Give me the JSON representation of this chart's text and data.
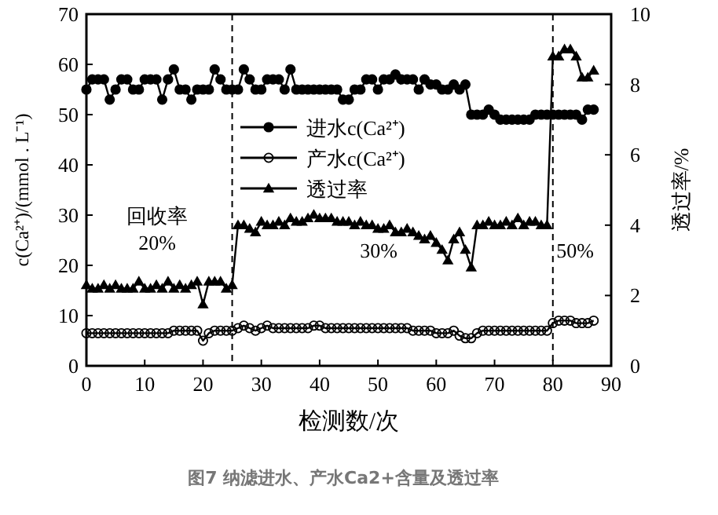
{
  "chart_data": {
    "type": "line",
    "title": "图7 纳滤进水、产水Ca2+含量及透过率",
    "xlabel": "检测数/次",
    "ylabel": "c(Ca²⁺)/(mmol . L⁻¹)",
    "y2label": "透过率/%",
    "x": [
      0,
      1,
      2,
      3,
      4,
      5,
      6,
      7,
      8,
      9,
      10,
      11,
      12,
      13,
      14,
      15,
      16,
      17,
      18,
      19,
      20,
      21,
      22,
      23,
      24,
      25,
      26,
      27,
      28,
      29,
      30,
      31,
      32,
      33,
      34,
      35,
      36,
      37,
      38,
      39,
      40,
      41,
      42,
      43,
      44,
      45,
      46,
      47,
      48,
      49,
      50,
      51,
      52,
      53,
      54,
      55,
      56,
      57,
      58,
      59,
      60,
      61,
      62,
      63,
      64,
      65,
      66,
      67,
      68,
      69,
      70,
      71,
      72,
      73,
      74,
      75,
      76,
      77,
      78,
      79,
      80,
      81,
      82,
      83,
      84,
      85,
      86,
      87
    ],
    "series": [
      {
        "name": "进水c(Ca²⁺)",
        "color": "#000000",
        "marker": "circle",
        "values": [
          55,
          57,
          57,
          57,
          53,
          55,
          57,
          57,
          55,
          55,
          57,
          57,
          57,
          53,
          57,
          59,
          55,
          55,
          53,
          55,
          55,
          55,
          59,
          57,
          55,
          55,
          55,
          59,
          57,
          55,
          55,
          57,
          57,
          57,
          55,
          59,
          55,
          55,
          55,
          55,
          55,
          55,
          55,
          55,
          53,
          53,
          55,
          55,
          57,
          57,
          55,
          57,
          57,
          58,
          57,
          57,
          57,
          55,
          57,
          56,
          56,
          55,
          55,
          56,
          55,
          56,
          50,
          50,
          50,
          51,
          50,
          49,
          49,
          49,
          49,
          49,
          49,
          50,
          50,
          50,
          50,
          50,
          50,
          50,
          50,
          49,
          51,
          51
        ]
      },
      {
        "name": "产水c(Ca²⁺)",
        "color": "#000000",
        "marker": "open-circle",
        "values": [
          6.5,
          6.5,
          6.5,
          6.5,
          6.5,
          6.5,
          6.5,
          6.5,
          6.5,
          6.5,
          6.5,
          6.5,
          6.5,
          6.5,
          6.5,
          7,
          7,
          7,
          7,
          7,
          5,
          6.5,
          7,
          7,
          7,
          7,
          7.5,
          8,
          7.5,
          7,
          7.5,
          8,
          7.5,
          7.5,
          7.5,
          7.5,
          7.5,
          7.5,
          7.5,
          8,
          8,
          7.5,
          7.5,
          7.5,
          7.5,
          7.5,
          7.5,
          7.5,
          7.5,
          7.5,
          7.5,
          7.5,
          7.5,
          7.5,
          7.5,
          7.5,
          7,
          7,
          7,
          7,
          6.5,
          6.5,
          6.5,
          7,
          6,
          5.5,
          5.5,
          6.5,
          7,
          7,
          7,
          7,
          7,
          7,
          7,
          7,
          7,
          7,
          7,
          7,
          8.5,
          9,
          9,
          9,
          8.5,
          8.5,
          8.5,
          9
        ]
      },
      {
        "name": "透过率",
        "color": "#000000",
        "marker": "triangle",
        "axis": "y2",
        "values": [
          2.3,
          2.2,
          2.2,
          2.3,
          2.2,
          2.3,
          2.2,
          2.2,
          2.2,
          2.4,
          2.2,
          2.2,
          2.3,
          2.2,
          2.4,
          2.2,
          2.3,
          2.2,
          2.3,
          2.4,
          1.75,
          2.4,
          2.4,
          2.4,
          2.2,
          2.3,
          4.0,
          4.0,
          3.9,
          3.8,
          4.1,
          4.0,
          4.0,
          4.1,
          4.0,
          4.2,
          4.1,
          4.1,
          4.2,
          4.3,
          4.2,
          4.2,
          4.2,
          4.1,
          4.1,
          4.1,
          4.0,
          4.1,
          4.0,
          4.0,
          3.9,
          3.9,
          4.0,
          3.8,
          3.8,
          3.9,
          3.8,
          3.7,
          3.6,
          3.7,
          3.5,
          3.3,
          3.0,
          3.6,
          3.8,
          3.3,
          2.8,
          4.0,
          4.0,
          4.1,
          4.0,
          4.0,
          4.1,
          4.0,
          4.2,
          4.0,
          4.1,
          4.1,
          4.0,
          4.0,
          8.8,
          8.8,
          9.0,
          9.0,
          8.8,
          8.2,
          8.2,
          8.4
        ]
      }
    ],
    "xlim": [
      0,
      90
    ],
    "xticks": [
      0,
      10,
      20,
      30,
      40,
      50,
      60,
      70,
      80,
      90
    ],
    "ylim": [
      0,
      70
    ],
    "yticks": [
      0,
      10,
      20,
      30,
      40,
      50,
      60,
      70
    ],
    "y2lim": [
      0,
      10
    ],
    "y2ticks": [
      0,
      2,
      4,
      6,
      8,
      10
    ],
    "ref_lines": [
      {
        "axis": "x",
        "value": 25,
        "line_style": "dashed"
      },
      {
        "axis": "x",
        "value": 80,
        "line_style": "dashed"
      }
    ],
    "annotations": [
      "回收率\n20%",
      "30%",
      "50%"
    ],
    "legend": "top",
    "grid": false,
    "line_style": "solid"
  }
}
